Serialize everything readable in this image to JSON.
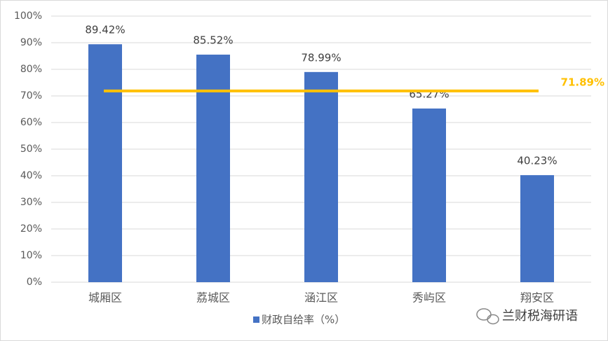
{
  "chart_data": {
    "type": "bar",
    "categories": [
      "城厢区",
      "荔城区",
      "涵江区",
      "秀屿区",
      "翔安区"
    ],
    "series": [
      {
        "name": "财政自给率（%）",
        "color": "#4472c4",
        "values": [
          89.42,
          85.52,
          78.99,
          65.27,
          40.23
        ],
        "value_labels": [
          "89.42%",
          "85.52%",
          "78.99%",
          "65.27%",
          "40.23%"
        ]
      }
    ],
    "reference_line": {
      "value": 71.89,
      "label": "71.89%",
      "color": "#ffc000"
    },
    "ylim": [
      0,
      100
    ],
    "yticks": [
      {
        "value": 0,
        "label": "0%"
      },
      {
        "value": 10,
        "label": "10%"
      },
      {
        "value": 20,
        "label": "20%"
      },
      {
        "value": 30,
        "label": "30%"
      },
      {
        "value": 40,
        "label": "40%"
      },
      {
        "value": 50,
        "label": "50%"
      },
      {
        "value": 60,
        "label": "60%"
      },
      {
        "value": 70,
        "label": "70%"
      },
      {
        "value": 80,
        "label": "80%"
      },
      {
        "value": 90,
        "label": "90%"
      },
      {
        "value": 100,
        "label": "100%"
      }
    ],
    "grid": true,
    "legend": "bottom",
    "watermark": "兰财税海研语"
  }
}
